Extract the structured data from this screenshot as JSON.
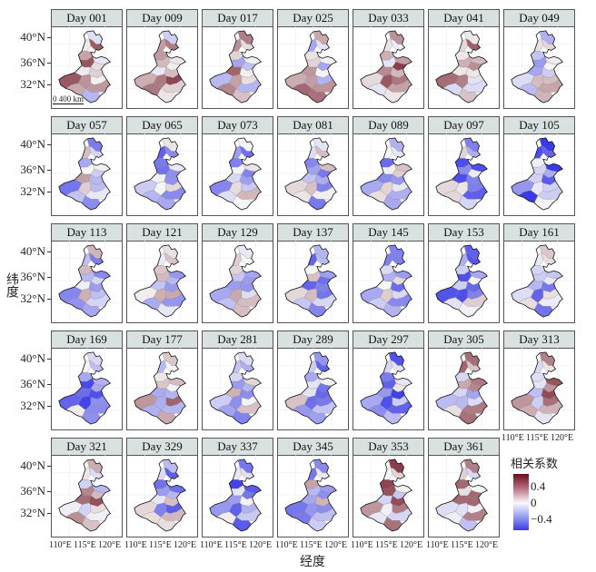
{
  "chart_data": {
    "type": "heatmap",
    "subtype": "faceted choropleth map",
    "xlabel": "经度",
    "ylabel": "纬度",
    "x_ticks": [
      "110°E",
      "115°E",
      "120°E"
    ],
    "y_ticks": [
      "40°N",
      "36°N",
      "32°N"
    ],
    "legend": {
      "title": "相关系数",
      "ticks": [
        "0.4",
        "0",
        "−0.4"
      ],
      "range": [
        -0.55,
        0.55
      ],
      "colors": [
        "#6b0a1a",
        "#f7f7f7",
        "#3a3ae8"
      ],
      "placement": "bottom-right"
    },
    "scale_bar": "0 400 km",
    "panels": [
      {
        "label": "Day 001",
        "mean": 0.1
      },
      {
        "label": "Day 009",
        "mean": 0.15
      },
      {
        "label": "Day 017",
        "mean": 0.05
      },
      {
        "label": "Day 025",
        "mean": 0.05
      },
      {
        "label": "Day 033",
        "mean": 0.2
      },
      {
        "label": "Day 041",
        "mean": 0.1
      },
      {
        "label": "Day 049",
        "mean": -0.05
      },
      {
        "label": "Day 057",
        "mean": -0.1
      },
      {
        "label": "Day 065",
        "mean": -0.2
      },
      {
        "label": "Day 073",
        "mean": -0.15
      },
      {
        "label": "Day 081",
        "mean": -0.1
      },
      {
        "label": "Day 089",
        "mean": -0.15
      },
      {
        "label": "Day 097",
        "mean": -0.2
      },
      {
        "label": "Day 105",
        "mean": -0.3
      },
      {
        "label": "Day 113",
        "mean": -0.1
      },
      {
        "label": "Day 121",
        "mean": -0.1
      },
      {
        "label": "Day 129",
        "mean": -0.1
      },
      {
        "label": "Day 137",
        "mean": -0.15
      },
      {
        "label": "Day 145",
        "mean": -0.2
      },
      {
        "label": "Day 153",
        "mean": -0.2
      },
      {
        "label": "Day 161",
        "mean": -0.15
      },
      {
        "label": "Day 169",
        "mean": -0.25
      },
      {
        "label": "Day 177",
        "mean": 0.05
      },
      {
        "label": "Day 281",
        "mean": -0.05
      },
      {
        "label": "Day 289",
        "mean": -0.15
      },
      {
        "label": "Day 297",
        "mean": -0.25
      },
      {
        "label": "Day 305",
        "mean": 0.05
      },
      {
        "label": "Day 313",
        "mean": 0.1
      },
      {
        "label": "Day 321",
        "mean": 0.1
      },
      {
        "label": "Day 329",
        "mean": -0.15
      },
      {
        "label": "Day 337",
        "mean": -0.25
      },
      {
        "label": "Day 345",
        "mean": -0.1
      },
      {
        "label": "Day 353",
        "mean": 0.15
      },
      {
        "label": "Day 361",
        "mean": 0.1
      }
    ]
  }
}
